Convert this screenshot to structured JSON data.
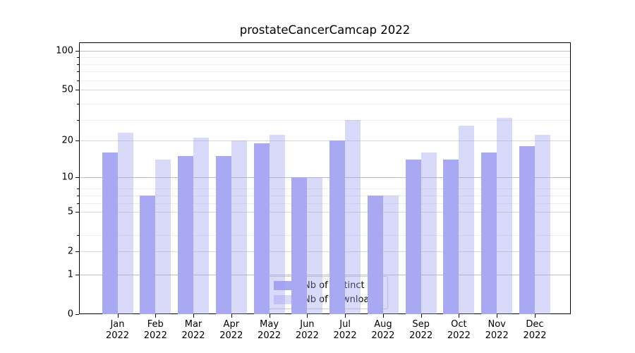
{
  "title": "prostateCancerCamcap 2022",
  "x_axis": {
    "months": [
      "Jan",
      "Feb",
      "Mar",
      "Apr",
      "May",
      "Jun",
      "Jul",
      "Aug",
      "Sep",
      "Oct",
      "Nov",
      "Dec"
    ],
    "year": "2022"
  },
  "y_axis": {
    "tick_labels": [
      "100",
      "50",
      "20",
      "10",
      "5",
      "2",
      "1",
      "0"
    ]
  },
  "legend": {
    "items": [
      "Nb of distinct IPs",
      "Nb of downloads"
    ]
  },
  "chart_data": {
    "type": "bar",
    "title": "prostateCancerCamcap 2022",
    "categories": [
      "Jan 2022",
      "Feb 2022",
      "Mar 2022",
      "Apr 2022",
      "May 2022",
      "Jun 2022",
      "Jul 2022",
      "Aug 2022",
      "Sep 2022",
      "Oct 2022",
      "Nov 2022",
      "Dec 2022"
    ],
    "series": [
      {
        "name": "Nb of distinct IPs",
        "color": "#a8a8f3",
        "opacity": 1,
        "values": [
          16,
          7,
          15,
          15,
          19,
          10,
          20,
          7,
          14,
          14,
          16,
          18
        ]
      },
      {
        "name": "Nb of downloads",
        "color": "#9a9aef",
        "opacity": 0.38,
        "values": [
          23,
          14,
          21,
          20,
          22,
          10,
          29,
          7,
          16,
          26,
          30,
          22
        ]
      }
    ],
    "xlabel": "",
    "ylabel": "",
    "yscale": "log(1+y)",
    "yticks": [
      0,
      1,
      2,
      5,
      10,
      20,
      50,
      100
    ],
    "ylim": [
      0,
      116
    ],
    "grid": true,
    "legend_position": "lower center"
  }
}
